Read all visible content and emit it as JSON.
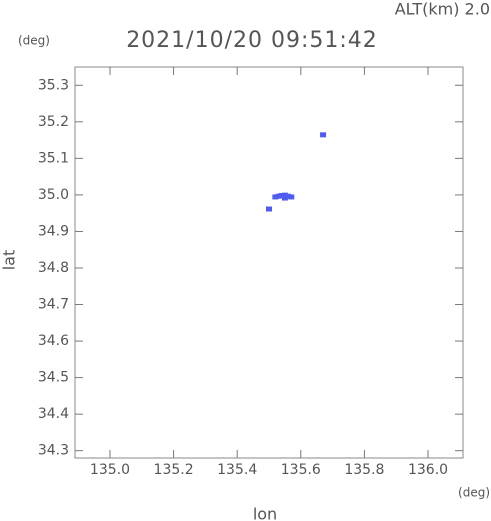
{
  "chart_data": {
    "type": "scatter",
    "title": "2021/10/20 09:51:42",
    "subtitle": "ALT(km) 2.0",
    "y_unit": "(deg)",
    "x_unit": "(deg)",
    "xlabel": "lon",
    "ylabel": "lat",
    "xlim": [
      134.89,
      136.11
    ],
    "ylim": [
      34.28,
      35.35
    ],
    "xticks": [
      {
        "value": 135,
        "label": "135.0"
      },
      135.2,
      135.4,
      135.6,
      135.8,
      {
        "value": 136,
        "label": "136.0"
      }
    ],
    "yticks": [
      {
        "value": 34.3,
        "label": "34.3"
      },
      34.4,
      34.5,
      34.6,
      34.7,
      34.8,
      34.9,
      {
        "value": 35,
        "label": "35.0"
      },
      35.1,
      35.2,
      35.3
    ],
    "grid": false,
    "series": [
      {
        "color": "#4f5cf2",
        "x": [
          135.67,
          135.52,
          135.53,
          135.54,
          135.55,
          135.56,
          135.57,
          135.55,
          135.5
        ],
        "values": [
          35.163,
          34.993,
          34.995,
          34.997,
          34.998,
          34.995,
          34.993,
          34.99,
          34.96
        ]
      }
    ]
  }
}
